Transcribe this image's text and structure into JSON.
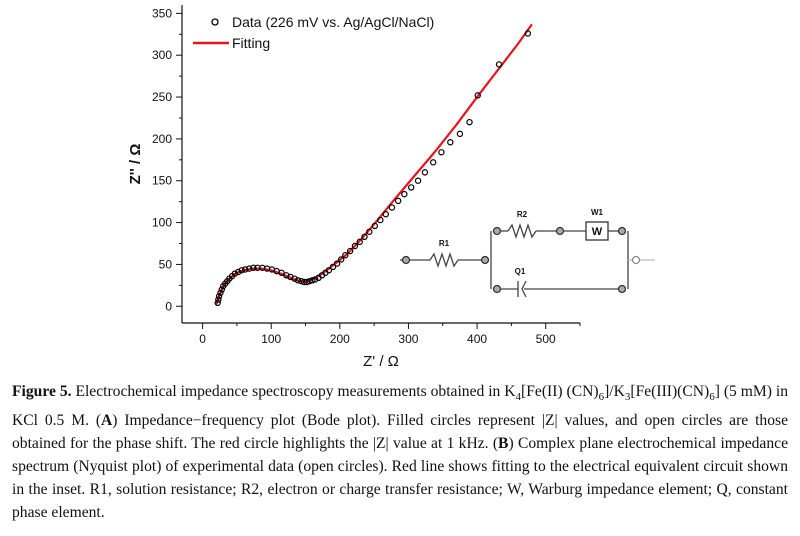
{
  "chart_data": {
    "type": "scatter",
    "xlabel": "Z' / Ω",
    "ylabel": "Z'' / Ω",
    "xlim": [
      -30,
      550
    ],
    "ylim": [
      -20,
      360
    ],
    "x_ticks": [
      0,
      100,
      200,
      300,
      400,
      500
    ],
    "y_ticks": [
      0,
      50,
      100,
      150,
      200,
      250,
      300,
      350
    ],
    "legend": {
      "placement": "top-left"
    },
    "series": [
      {
        "name": "Data (226 mV vs. Ag/AgCl/NaCl)",
        "marker": "open-circle",
        "color": "#000000",
        "points": [
          [
            22,
            4
          ],
          [
            23,
            8
          ],
          [
            24,
            12
          ],
          [
            26,
            16
          ],
          [
            28,
            20
          ],
          [
            30,
            24
          ],
          [
            33,
            27
          ],
          [
            36,
            30
          ],
          [
            39,
            33
          ],
          [
            43,
            36
          ],
          [
            47,
            39
          ],
          [
            52,
            41
          ],
          [
            57,
            43
          ],
          [
            62,
            44
          ],
          [
            68,
            45
          ],
          [
            74,
            46
          ],
          [
            80,
            46
          ],
          [
            87,
            46
          ],
          [
            94,
            45
          ],
          [
            101,
            44
          ],
          [
            108,
            42
          ],
          [
            115,
            40
          ],
          [
            122,
            37
          ],
          [
            128,
            35
          ],
          [
            134,
            33
          ],
          [
            139,
            31
          ],
          [
            144,
            30
          ],
          [
            148,
            29
          ],
          [
            152,
            29
          ],
          [
            156,
            30
          ],
          [
            160,
            31
          ],
          [
            164,
            32
          ],
          [
            169,
            34
          ],
          [
            174,
            37
          ],
          [
            179,
            40
          ],
          [
            184,
            43
          ],
          [
            190,
            47
          ],
          [
            196,
            51
          ],
          [
            202,
            56
          ],
          [
            208,
            61
          ],
          [
            215,
            66
          ],
          [
            222,
            72
          ],
          [
            229,
            77
          ],
          [
            236,
            83
          ],
          [
            243,
            89
          ],
          [
            251,
            96
          ],
          [
            259,
            103
          ],
          [
            267,
            110
          ],
          [
            276,
            118
          ],
          [
            285,
            126
          ],
          [
            294,
            134
          ],
          [
            304,
            142
          ],
          [
            314,
            150
          ],
          [
            324,
            160
          ],
          [
            336,
            172
          ],
          [
            348,
            184
          ],
          [
            361,
            196
          ],
          [
            375,
            206
          ],
          [
            389,
            220
          ],
          [
            401,
            252
          ],
          [
            432,
            289
          ],
          [
            474,
            326
          ]
        ]
      },
      {
        "name": "Fitting",
        "line": "solid",
        "color": "#e8141c",
        "points": [
          [
            20,
            2
          ],
          [
            24,
            12
          ],
          [
            30,
            24
          ],
          [
            38,
            32
          ],
          [
            48,
            39
          ],
          [
            60,
            43
          ],
          [
            72,
            45
          ],
          [
            86,
            45
          ],
          [
            100,
            43
          ],
          [
            114,
            39
          ],
          [
            128,
            34
          ],
          [
            140,
            30
          ],
          [
            150,
            29
          ],
          [
            162,
            33
          ],
          [
            176,
            40
          ],
          [
            192,
            50
          ],
          [
            210,
            62
          ],
          [
            230,
            79
          ],
          [
            255,
            103
          ],
          [
            280,
            128
          ],
          [
            310,
            157
          ],
          [
            340,
            186
          ],
          [
            370,
            217
          ],
          [
            400,
            250
          ],
          [
            430,
            282
          ],
          [
            460,
            314
          ],
          [
            480,
            337
          ]
        ]
      }
    ]
  },
  "inset": {
    "r1_label": "R1",
    "r2_label": "R2",
    "w1_label": "W1",
    "w_box": "W",
    "q1_label": "Q1"
  },
  "caption": {
    "label": "Figure 5.",
    "parts": [
      {
        "t": " Electrochemical impedance spectroscopy measurements obtained in K"
      },
      {
        "t": "4",
        "sub": true
      },
      {
        "t": "[Fe(II) (CN)"
      },
      {
        "t": "6",
        "sub": true
      },
      {
        "t": "]/K"
      },
      {
        "t": "3",
        "sub": true
      },
      {
        "t": "[Fe(III)(CN)"
      },
      {
        "t": "6",
        "sub": true
      },
      {
        "t": "] (5 mM) in KCl 0.5 M. ("
      },
      {
        "t": "A",
        "bold": true
      },
      {
        "t": ") Impedance−frequency plot (Bode plot). Filled circles represent |Z| values, and open circles are those obtained for the phase shift. The red circle highlights the |Z| value at 1 kHz. ("
      },
      {
        "t": "B",
        "bold": true
      },
      {
        "t": ") Complex plane electrochemical impedance spectrum (Nyquist plot) of experimental data (open circles). Red line shows fitting to the electrical equivalent circuit shown in the inset. R1, solution resistance; R2, electron or charge transfer resistance; W, Warburg impedance element; Q, constant phase element."
      }
    ]
  }
}
